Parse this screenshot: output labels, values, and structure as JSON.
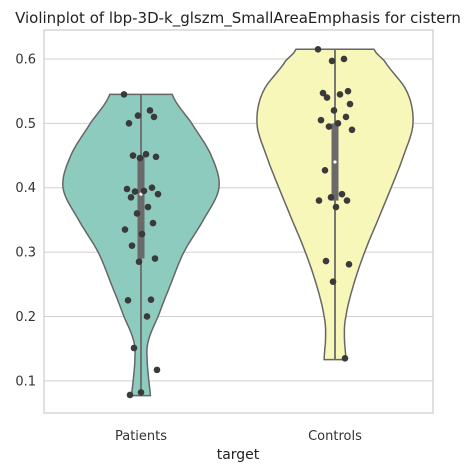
{
  "chart_data": {
    "type": "violin",
    "title": "Violinplot of lbp-3D-k_glszm_SmallAreaEmphasis for cistern",
    "xlabel": "target",
    "ylabel": "",
    "categories": [
      "Patients",
      "Controls"
    ],
    "ylim": [
      0.05,
      0.645
    ],
    "yticks": [
      0.1,
      0.2,
      0.3,
      0.4,
      0.5,
      0.6
    ],
    "ytick_labels": [
      "0.1",
      "0.2",
      "0.3",
      "0.4",
      "0.5",
      "0.6"
    ],
    "grid": true,
    "colors": {
      "Patients": "#8ecbbf",
      "Controls": "#f7f7b9",
      "outline": "#666666",
      "point": "#3a3a3a",
      "box": "#6a6a6a",
      "grid": "#d0d0d0",
      "spine": "#cccccc"
    },
    "violins": [
      {
        "category": "Patients",
        "min": 0.077,
        "max": 0.545,
        "q1": 0.29,
        "median": 0.39,
        "q3": 0.45,
        "profile": [
          [
            0.077,
            0.12
          ],
          [
            0.1,
            0.1
          ],
          [
            0.13,
            0.08
          ],
          [
            0.16,
            0.09
          ],
          [
            0.2,
            0.22
          ],
          [
            0.25,
            0.38
          ],
          [
            0.3,
            0.55
          ],
          [
            0.35,
            0.8
          ],
          [
            0.4,
            1.0
          ],
          [
            0.45,
            0.9
          ],
          [
            0.5,
            0.65
          ],
          [
            0.545,
            0.4
          ]
        ],
        "points": [
          0.545,
          0.52,
          0.512,
          0.51,
          0.5,
          0.452,
          0.45,
          0.448,
          0.446,
          0.4,
          0.398,
          0.395,
          0.394,
          0.39,
          0.385,
          0.37,
          0.36,
          0.345,
          0.335,
          0.328,
          0.31,
          0.29,
          0.285,
          0.226,
          0.225,
          0.2,
          0.151,
          0.117,
          0.082,
          0.078
        ]
      },
      {
        "category": "Controls",
        "min": 0.133,
        "max": 0.615,
        "q1": 0.38,
        "median": 0.44,
        "q3": 0.5,
        "profile": [
          [
            0.133,
            0.14
          ],
          [
            0.17,
            0.12
          ],
          [
            0.2,
            0.14
          ],
          [
            0.25,
            0.24
          ],
          [
            0.3,
            0.38
          ],
          [
            0.35,
            0.55
          ],
          [
            0.4,
            0.72
          ],
          [
            0.45,
            0.88
          ],
          [
            0.5,
            1.0
          ],
          [
            0.55,
            0.92
          ],
          [
            0.6,
            0.62
          ],
          [
            0.615,
            0.5
          ]
        ],
        "points": [
          0.615,
          0.6,
          0.597,
          0.55,
          0.547,
          0.545,
          0.54,
          0.53,
          0.52,
          0.51,
          0.505,
          0.5,
          0.495,
          0.49,
          0.427,
          0.39,
          0.385,
          0.38,
          0.38,
          0.37,
          0.286,
          0.281,
          0.254,
          0.135
        ]
      }
    ]
  }
}
